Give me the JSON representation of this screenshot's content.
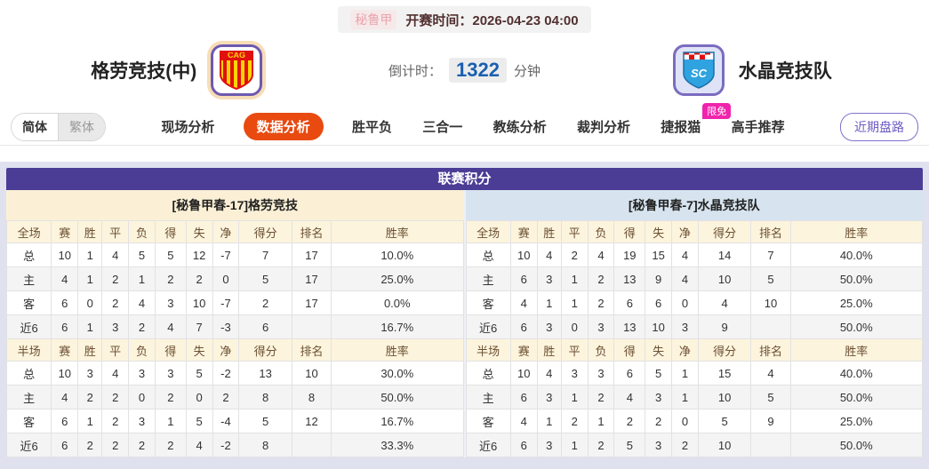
{
  "top_bar": {
    "league_tag": "秘鲁甲",
    "kickoff_text": "开赛时间：2026-04-23 04:00"
  },
  "match_header": {
    "home_team": "格劳竞技(中)",
    "away_team": "水晶竞技队",
    "home_badge_text": "CAG",
    "away_badge_text": "SC",
    "countdown_label": "倒计时：",
    "countdown_value": "1322",
    "countdown_unit": "分钟"
  },
  "nav": {
    "lang_simplified": "简体",
    "lang_traditional": "繁体",
    "tabs": [
      {
        "label": "现场分析",
        "active": false,
        "badge": ""
      },
      {
        "label": "数据分析",
        "active": true,
        "badge": ""
      },
      {
        "label": "胜平负",
        "active": false,
        "badge": ""
      },
      {
        "label": "三合一",
        "active": false,
        "badge": ""
      },
      {
        "label": "教练分析",
        "active": false,
        "badge": ""
      },
      {
        "label": "裁判分析",
        "active": false,
        "badge": ""
      },
      {
        "label": "捷报猫",
        "active": false,
        "badge": "限免"
      },
      {
        "label": "高手推荐",
        "active": false,
        "badge": ""
      }
    ],
    "recent_button": "近期盘路"
  },
  "standings": {
    "title": "联赛积分",
    "home_header": "[秘鲁甲春-17]格劳竞技",
    "away_header": "[秘鲁甲春-7]水晶竞技队",
    "full_label": "全场",
    "half_label": "半场",
    "columns": [
      "赛",
      "胜",
      "平",
      "负",
      "得",
      "失",
      "净",
      "得分",
      "排名",
      "胜率"
    ],
    "home_full": [
      {
        "scope": "总",
        "type": "total",
        "cells": [
          "10",
          "1",
          "4",
          "5",
          "5",
          "12",
          "-7",
          "7",
          "17",
          "10.0%"
        ]
      },
      {
        "scope": "主",
        "type": "home",
        "cells": [
          "4",
          "1",
          "2",
          "1",
          "2",
          "2",
          "0",
          "5",
          "17",
          "25.0%"
        ]
      },
      {
        "scope": "客",
        "type": "away",
        "cells": [
          "6",
          "0",
          "2",
          "4",
          "3",
          "10",
          "-7",
          "2",
          "17",
          "0.0%"
        ]
      },
      {
        "scope": "近6",
        "type": "recent",
        "cells": [
          "6",
          "1",
          "3",
          "2",
          "4",
          "7",
          "-3",
          "6",
          "",
          "16.7%"
        ]
      }
    ],
    "home_half": [
      {
        "scope": "总",
        "type": "total",
        "cells": [
          "10",
          "3",
          "4",
          "3",
          "3",
          "5",
          "-2",
          "13",
          "10",
          "30.0%"
        ]
      },
      {
        "scope": "主",
        "type": "home",
        "cells": [
          "4",
          "2",
          "2",
          "0",
          "2",
          "0",
          "2",
          "8",
          "8",
          "50.0%"
        ]
      },
      {
        "scope": "客",
        "type": "away",
        "cells": [
          "6",
          "1",
          "2",
          "3",
          "1",
          "5",
          "-4",
          "5",
          "12",
          "16.7%"
        ]
      },
      {
        "scope": "近6",
        "type": "recent",
        "cells": [
          "6",
          "2",
          "2",
          "2",
          "2",
          "4",
          "-2",
          "8",
          "",
          "33.3%"
        ]
      }
    ],
    "away_full": [
      {
        "scope": "总",
        "type": "total",
        "cells": [
          "10",
          "4",
          "2",
          "4",
          "19",
          "15",
          "4",
          "14",
          "7",
          "40.0%"
        ]
      },
      {
        "scope": "主",
        "type": "home",
        "cells": [
          "6",
          "3",
          "1",
          "2",
          "13",
          "9",
          "4",
          "10",
          "5",
          "50.0%"
        ]
      },
      {
        "scope": "客",
        "type": "away",
        "cells": [
          "4",
          "1",
          "1",
          "2",
          "6",
          "6",
          "0",
          "4",
          "10",
          "25.0%"
        ]
      },
      {
        "scope": "近6",
        "type": "recent",
        "cells": [
          "6",
          "3",
          "0",
          "3",
          "13",
          "10",
          "3",
          "9",
          "",
          "50.0%"
        ]
      }
    ],
    "away_half": [
      {
        "scope": "总",
        "type": "total",
        "cells": [
          "10",
          "4",
          "3",
          "3",
          "6",
          "5",
          "1",
          "15",
          "4",
          "40.0%"
        ]
      },
      {
        "scope": "主",
        "type": "home",
        "cells": [
          "6",
          "3",
          "1",
          "2",
          "4",
          "3",
          "1",
          "10",
          "5",
          "50.0%"
        ]
      },
      {
        "scope": "客",
        "type": "away",
        "cells": [
          "4",
          "1",
          "2",
          "1",
          "2",
          "2",
          "0",
          "5",
          "9",
          "25.0%"
        ]
      },
      {
        "scope": "近6",
        "type": "recent",
        "cells": [
          "6",
          "3",
          "1",
          "2",
          "5",
          "3",
          "2",
          "10",
          "",
          "50.0%"
        ]
      }
    ]
  },
  "colors": {
    "panel_title_purple": "#4b3c96",
    "panel_background": "#dfe1ee",
    "home_subheader": "#fbf0d6",
    "away_subheader": "#d7e4ef",
    "column_header_bg": "#fdf4dd",
    "active_tab_orange": "#e84a10",
    "free_badge_magenta": "#f024ad",
    "countdown_blue": "#1b5fb0",
    "home_row_red": "#cc2222",
    "away_row_blue": "#2233cc",
    "recent_button_purple": "#6e5bc4",
    "league_tag_pink": "#e9a3ad"
  }
}
